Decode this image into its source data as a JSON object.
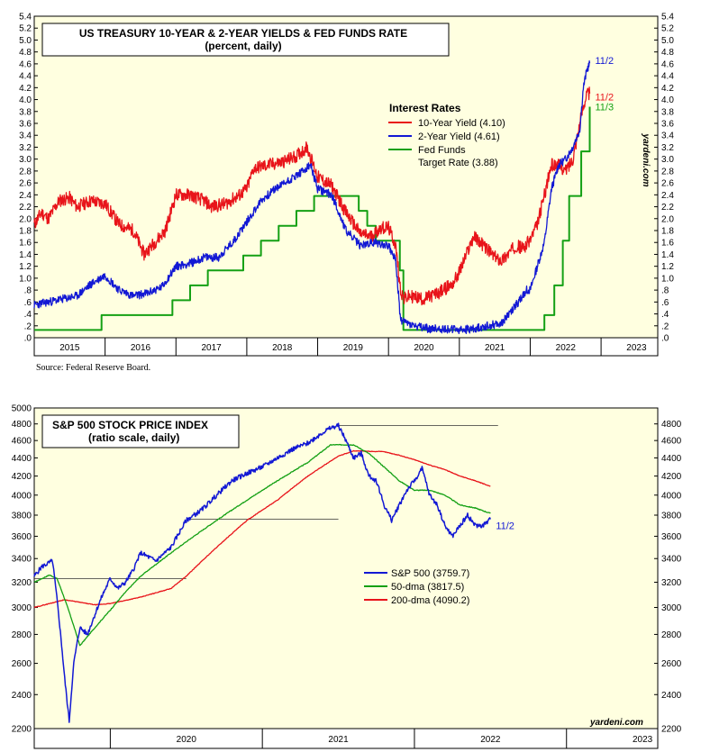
{
  "chart_data": [
    {
      "type": "line",
      "title": "US TREASURY 10-YEAR & 2-YEAR YIELDS & FED FUNDS RATE",
      "subtitle": "(percent, daily)",
      "legend_title": "Interest Rates",
      "legend_position": "top-right",
      "ylim": [
        0,
        5.4
      ],
      "y_ticks_left": [
        "5.4",
        "5.2",
        "5.0",
        "4.8",
        "4.6",
        "4.4",
        "4.2",
        "4.0",
        "3.8",
        "3.6",
        "3.4",
        "3.2",
        "3.0",
        "2.8",
        "2.6",
        "2.4",
        "2.2",
        "2.0",
        "1.8",
        "1.6",
        "1.4",
        "1.2",
        "1.0",
        ".8",
        ".6",
        ".4",
        ".2",
        ".0"
      ],
      "y_ticks_right": [
        "5.4",
        "5.2",
        "5.0",
        "4.8",
        "4.6",
        "4.4",
        "4.2",
        "4.0",
        "3.8",
        "3.6",
        "3.4",
        "3.2",
        "3.0",
        "2.8",
        "2.6",
        "2.4",
        "2.2",
        "2.0",
        "1.8",
        "1.6",
        "1.4",
        "1.2",
        "1.0",
        ".8",
        ".6",
        ".4",
        ".2",
        ".0"
      ],
      "x_labels": [
        "2015",
        "2016",
        "2017",
        "2018",
        "2019",
        "2020",
        "2021",
        "2022",
        "2023"
      ],
      "xlim": [
        2015.0,
        2023.8
      ],
      "watermark": "yardeni.com",
      "source": "Source: Federal Reserve Board.",
      "series": [
        {
          "name": "10-Year Yield (4.10)",
          "color": "#e8141a",
          "end_label": "11/2",
          "x": [
            2015.0,
            2015.1,
            2015.2,
            2015.35,
            2015.5,
            2015.6,
            2015.8,
            2016.0,
            2016.2,
            2016.4,
            2016.55,
            2016.7,
            2016.85,
            2017.0,
            2017.2,
            2017.4,
            2017.5,
            2017.7,
            2017.9,
            2018.0,
            2018.1,
            2018.3,
            2018.5,
            2018.7,
            2018.85,
            2019.0,
            2019.2,
            2019.4,
            2019.6,
            2019.75,
            2019.9,
            2020.0,
            2020.1,
            2020.17,
            2020.22,
            2020.3,
            2020.5,
            2020.7,
            2020.9,
            2021.0,
            2021.1,
            2021.2,
            2021.3,
            2021.5,
            2021.6,
            2021.8,
            2021.9,
            2022.0,
            2022.1,
            2022.2,
            2022.3,
            2022.4,
            2022.5,
            2022.6,
            2022.7,
            2022.75,
            2022.8,
            2022.84
          ],
          "values": [
            1.9,
            2.1,
            2.0,
            2.3,
            2.35,
            2.2,
            2.3,
            2.25,
            1.9,
            1.8,
            1.4,
            1.6,
            1.8,
            2.4,
            2.4,
            2.3,
            2.2,
            2.25,
            2.4,
            2.5,
            2.85,
            2.9,
            2.95,
            3.05,
            3.2,
            2.7,
            2.55,
            2.1,
            1.75,
            1.7,
            1.85,
            1.85,
            1.55,
            0.8,
            0.65,
            0.7,
            0.65,
            0.75,
            0.9,
            1.1,
            1.4,
            1.7,
            1.6,
            1.35,
            1.3,
            1.55,
            1.5,
            1.65,
            1.9,
            2.4,
            2.9,
            2.9,
            2.8,
            3.0,
            3.6,
            3.9,
            4.1,
            4.1
          ]
        },
        {
          "name": "2-Year Yield (4.61)",
          "color": "#1218d4",
          "end_label": "11/2",
          "x": [
            2015.0,
            2015.2,
            2015.4,
            2015.6,
            2015.8,
            2016.0,
            2016.2,
            2016.4,
            2016.6,
            2016.8,
            2017.0,
            2017.2,
            2017.4,
            2017.6,
            2017.8,
            2018.0,
            2018.2,
            2018.4,
            2018.6,
            2018.8,
            2018.9,
            2019.0,
            2019.2,
            2019.4,
            2019.6,
            2019.8,
            2020.0,
            2020.1,
            2020.17,
            2020.25,
            2020.4,
            2020.6,
            2020.8,
            2021.0,
            2021.2,
            2021.4,
            2021.6,
            2021.8,
            2021.95,
            2022.0,
            2022.1,
            2022.2,
            2022.3,
            2022.4,
            2022.5,
            2022.6,
            2022.7,
            2022.75,
            2022.8,
            2022.84
          ],
          "values": [
            0.55,
            0.6,
            0.65,
            0.7,
            0.9,
            1.05,
            0.8,
            0.7,
            0.75,
            0.85,
            1.2,
            1.25,
            1.35,
            1.35,
            1.6,
            1.95,
            2.3,
            2.5,
            2.65,
            2.8,
            2.9,
            2.5,
            2.4,
            1.8,
            1.55,
            1.6,
            1.55,
            1.3,
            0.3,
            0.25,
            0.18,
            0.15,
            0.15,
            0.13,
            0.15,
            0.2,
            0.25,
            0.55,
            0.8,
            0.8,
            1.2,
            1.6,
            2.5,
            2.9,
            3.0,
            3.2,
            3.5,
            4.2,
            4.5,
            4.61
          ]
        },
        {
          "name": "Fed Funds Target Rate (3.88)",
          "color": "#14a014",
          "end_label": "11/3",
          "step": true,
          "x": [
            2015.0,
            2015.95,
            2016.95,
            2017.2,
            2017.45,
            2017.95,
            2018.2,
            2018.45,
            2018.7,
            2018.95,
            2019.58,
            2019.7,
            2019.82,
            2020.16,
            2020.21,
            2022.2,
            2022.34,
            2022.46,
            2022.55,
            2022.72,
            2022.84
          ],
          "values": [
            0.13,
            0.38,
            0.63,
            0.88,
            1.13,
            1.38,
            1.63,
            1.88,
            2.13,
            2.38,
            2.13,
            1.88,
            1.63,
            1.13,
            0.13,
            0.38,
            0.88,
            1.63,
            2.38,
            3.13,
            3.88
          ]
        }
      ]
    },
    {
      "type": "line",
      "title": "S&P 500 STOCK PRICE INDEX",
      "subtitle": "(ratio scale, daily)",
      "scale": "log",
      "ylim": [
        2200,
        5000
      ],
      "y_ticks_left": [
        "5000",
        "4800",
        "4600",
        "4400",
        "4200",
        "4000",
        "3800",
        "3600",
        "3400",
        "3200",
        "3000",
        "2800",
        "2600",
        "2400",
        "2200"
      ],
      "y_ticks_right": [
        "4800",
        "4600",
        "4400",
        "4200",
        "4000",
        "3800",
        "3600",
        "3400",
        "3200",
        "3000",
        "2800",
        "2600",
        "2400",
        "2200"
      ],
      "x_labels": [
        "2020",
        "2021",
        "2022",
        "2023"
      ],
      "xlim": [
        2019.5,
        2023.6
      ],
      "watermark": "yardeni.com",
      "legend_position": "bottom-right",
      "reference_lines": [
        {
          "level": 3230,
          "from": 2019.5,
          "to": 2020.5
        },
        {
          "level": 3760,
          "from": 2020.5,
          "to": 2021.5
        },
        {
          "level": 4780,
          "from": 2021.5,
          "to": 2022.55
        }
      ],
      "series": [
        {
          "name": "S&P 500 (3759.7)",
          "color": "#1218d4",
          "end_label": "11/2",
          "x": [
            2019.5,
            2019.55,
            2019.62,
            2019.66,
            2019.7,
            2019.73,
            2019.76,
            2019.8,
            2019.85,
            2019.9,
            2019.95,
            2020.0,
            2020.05,
            2020.1,
            2020.15,
            2020.2,
            2020.3,
            2020.4,
            2020.5,
            2020.6,
            2020.7,
            2020.8,
            2020.9,
            2021.0,
            2021.1,
            2021.2,
            2021.3,
            2021.4,
            2021.45,
            2021.5,
            2021.55,
            2021.6,
            2021.65,
            2021.7,
            2021.75,
            2021.8,
            2021.85,
            2021.9,
            2021.95,
            2022.0,
            2022.05,
            2022.1,
            2022.15,
            2022.2,
            2022.25,
            2022.3,
            2022.35,
            2022.4,
            2022.45,
            2022.5
          ],
          "values": [
            3250,
            3330,
            3380,
            2950,
            2500,
            2240,
            2600,
            2850,
            2800,
            2950,
            3100,
            3230,
            3150,
            3200,
            3300,
            3450,
            3380,
            3500,
            3750,
            3850,
            4000,
            4150,
            4230,
            4300,
            4400,
            4500,
            4570,
            4700,
            4750,
            4780,
            4600,
            4400,
            4450,
            4200,
            4150,
            3900,
            3750,
            3900,
            4050,
            4150,
            4280,
            4000,
            3900,
            3700,
            3600,
            3700,
            3800,
            3700,
            3700,
            3760
          ]
        },
        {
          "name": "50-dma (3817.5)",
          "color": "#14a014",
          "x": [
            2019.5,
            2019.6,
            2019.65,
            2019.72,
            2019.8,
            2019.9,
            2020.0,
            2020.1,
            2020.2,
            2020.3,
            2020.5,
            2020.7,
            2020.9,
            2021.1,
            2021.3,
            2021.45,
            2021.6,
            2021.7,
            2021.8,
            2021.9,
            2022.0,
            2022.1,
            2022.2,
            2022.3,
            2022.4,
            2022.5
          ],
          "values": [
            3200,
            3260,
            3230,
            3000,
            2720,
            2850,
            2980,
            3120,
            3250,
            3350,
            3550,
            3750,
            3950,
            4150,
            4350,
            4550,
            4550,
            4450,
            4300,
            4150,
            4050,
            4050,
            4000,
            3900,
            3870,
            3817
          ]
        },
        {
          "name": "200-dma (4090.2)",
          "color": "#e8141a",
          "x": [
            2019.5,
            2019.7,
            2019.9,
            2020.0,
            2020.2,
            2020.4,
            2020.5,
            2020.7,
            2020.9,
            2021.1,
            2021.3,
            2021.5,
            2021.6,
            2021.8,
            2021.9,
            2022.0,
            2022.1,
            2022.2,
            2022.3,
            2022.4,
            2022.5
          ],
          "values": [
            3000,
            3060,
            3020,
            3030,
            3080,
            3150,
            3250,
            3500,
            3750,
            3950,
            4200,
            4420,
            4480,
            4470,
            4430,
            4380,
            4320,
            4270,
            4200,
            4150,
            4090
          ]
        }
      ]
    }
  ]
}
